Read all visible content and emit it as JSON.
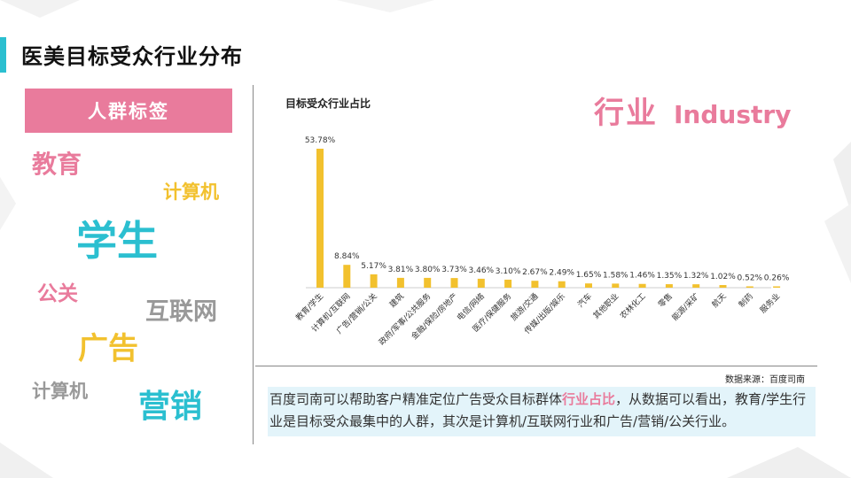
{
  "page": {
    "title": "医美目标受众行业分布",
    "tag_label": "人群标签",
    "industry_cn": "行业",
    "industry_en": "Industry",
    "source": "数据来源：百度司南",
    "desc_part1": "百度司南可以帮助客户精准定位广告受众目标群体",
    "desc_highlight": "行业占比",
    "desc_part2": "，从数据可以看出，教育/学生行业是目标受众最集中的人群，其次是计算机/互联网行业和广告/营销/公关行业。"
  },
  "tag_words": [
    {
      "text": "教育",
      "color": "#e97b9c"
    },
    {
      "text": "计算机",
      "color": "#f2c12e"
    },
    {
      "text": "学生",
      "color": "#2bbfd0"
    },
    {
      "text": "公关",
      "color": "#e97b9c"
    },
    {
      "text": "互联网",
      "color": "#999999"
    },
    {
      "text": "广告",
      "color": "#f2c12e"
    },
    {
      "text": "计算机",
      "color": "#999999"
    },
    {
      "text": "营销",
      "color": "#2bbfd0"
    }
  ],
  "colors": {
    "accent_cyan": "#2bbfd0",
    "accent_pink": "#e97b9c",
    "bar": "#f2c12e"
  },
  "chart_data": {
    "type": "bar",
    "title": "目标受众行业占比",
    "categories": [
      "教育/学生",
      "计算机/互联网",
      "广告/营销/公关",
      "建筑",
      "政府/军事/公共服务",
      "金融/保险/房地产",
      "电信/网络",
      "医疗/保健服务",
      "旅游/交通",
      "传媒/出版/娱乐",
      "汽车",
      "其他职业",
      "农林化工",
      "零售",
      "能源/采矿",
      "航天",
      "制药",
      "服务业"
    ],
    "values": [
      53.78,
      8.84,
      5.17,
      3.81,
      3.8,
      3.73,
      3.46,
      3.1,
      2.67,
      2.49,
      1.65,
      1.58,
      1.46,
      1.35,
      1.32,
      1.02,
      0.52,
      0.26
    ],
    "labels": [
      "53.78%",
      "8.84%",
      "5.17%",
      "3.81%",
      "3.80%",
      "3.73%",
      "3.46%",
      "3.10%",
      "2.67%",
      "2.49%",
      "1.65%",
      "1.58%",
      "1.46%",
      "1.35%",
      "1.32%",
      "1.02%",
      "0.52%",
      "0.26%"
    ],
    "ylim": [
      0,
      55
    ],
    "grid": false,
    "legend": "none"
  }
}
